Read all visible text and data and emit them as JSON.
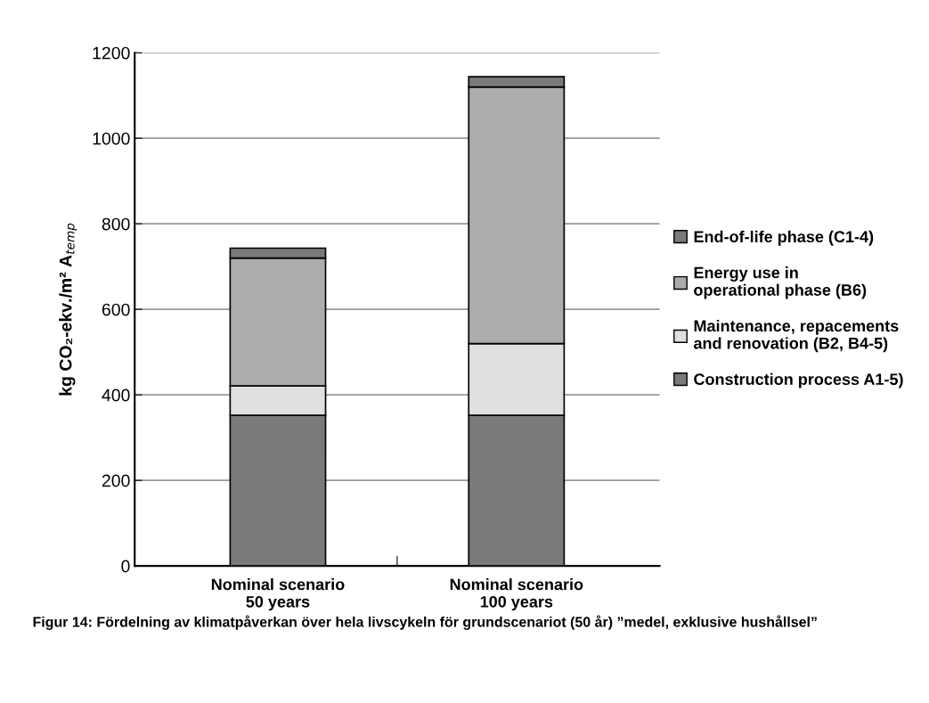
{
  "chart_data": {
    "type": "bar",
    "stacked": true,
    "categories": [
      "Nominal scenario\n50 years",
      "Nominal scenario\n100 years"
    ],
    "series": [
      {
        "name": "Construction process A1-5)",
        "color": "#7a7a7a",
        "values": [
          352,
          352
        ]
      },
      {
        "name": "Maintenance, repacements\nand renovation (B2, B4-5)",
        "color": "#e0e0e0",
        "values": [
          69,
          168
        ]
      },
      {
        "name": "Energy use in\noperational phase (B6)",
        "color": "#acacac",
        "values": [
          299,
          600
        ]
      },
      {
        "name": "End-of-life phase (C1-4)",
        "color": "#7a7a7a",
        "values": [
          23,
          24
        ]
      }
    ],
    "ylabel": "kg CO₂-ekv./m² A$_{temp}$",
    "ylim": [
      0,
      1200
    ],
    "yticks": [
      0,
      200,
      400,
      600,
      800,
      1000,
      1200
    ],
    "grid": "y",
    "legend": "right",
    "annotations": [
      "Figur 14: Fördelning av klimatpåverkan över hela livscykeln för grundscenariot (50 år) ”medel, exklusive hushållsel”"
    ]
  }
}
